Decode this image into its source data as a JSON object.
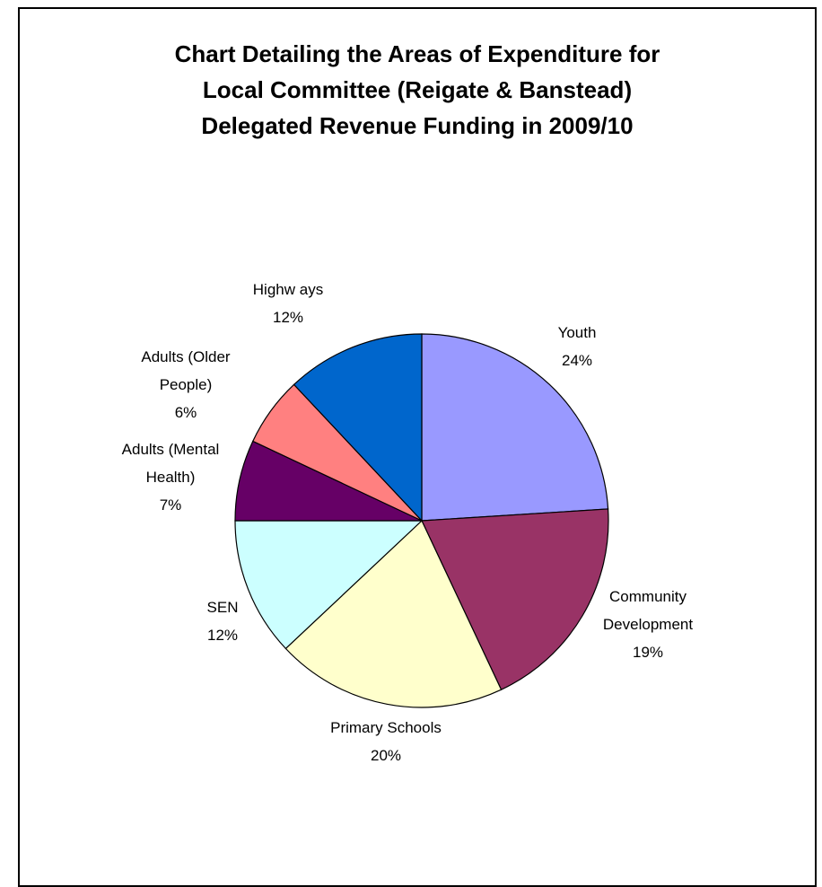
{
  "chart_data": {
    "type": "pie",
    "title_lines": [
      "Chart Detailing the Areas of Expenditure for",
      "Local Committee (Reigate & Banstead)",
      "Delegated Revenue Funding in 2009/10"
    ],
    "slices": [
      {
        "name": "Youth",
        "label_lines": [
          "Youth"
        ],
        "pct_text": "24%",
        "value": 24,
        "color": "#9999ff"
      },
      {
        "name": "Community Development",
        "label_lines": [
          "Community",
          "Development"
        ],
        "pct_text": "19%",
        "value": 19,
        "color": "#993366"
      },
      {
        "name": "Primary Schools",
        "label_lines": [
          "Primary Schools"
        ],
        "pct_text": "20%",
        "value": 20,
        "color": "#ffffcc"
      },
      {
        "name": "SEN",
        "label_lines": [
          "SEN"
        ],
        "pct_text": "12%",
        "value": 12,
        "color": "#ccffff"
      },
      {
        "name": "Adults (Mental Health)",
        "label_lines": [
          "Adults (Mental",
          "Health)"
        ],
        "pct_text": "7%",
        "value": 7,
        "color": "#660066"
      },
      {
        "name": "Adults (Older People)",
        "label_lines": [
          "Adults (Older",
          "People)"
        ],
        "pct_text": "6%",
        "value": 6,
        "color": "#ff8080"
      },
      {
        "name": "Highways",
        "label_lines": [
          "Highw ays"
        ],
        "pct_text": "12%",
        "value": 12,
        "color": "#0066cc"
      }
    ]
  }
}
